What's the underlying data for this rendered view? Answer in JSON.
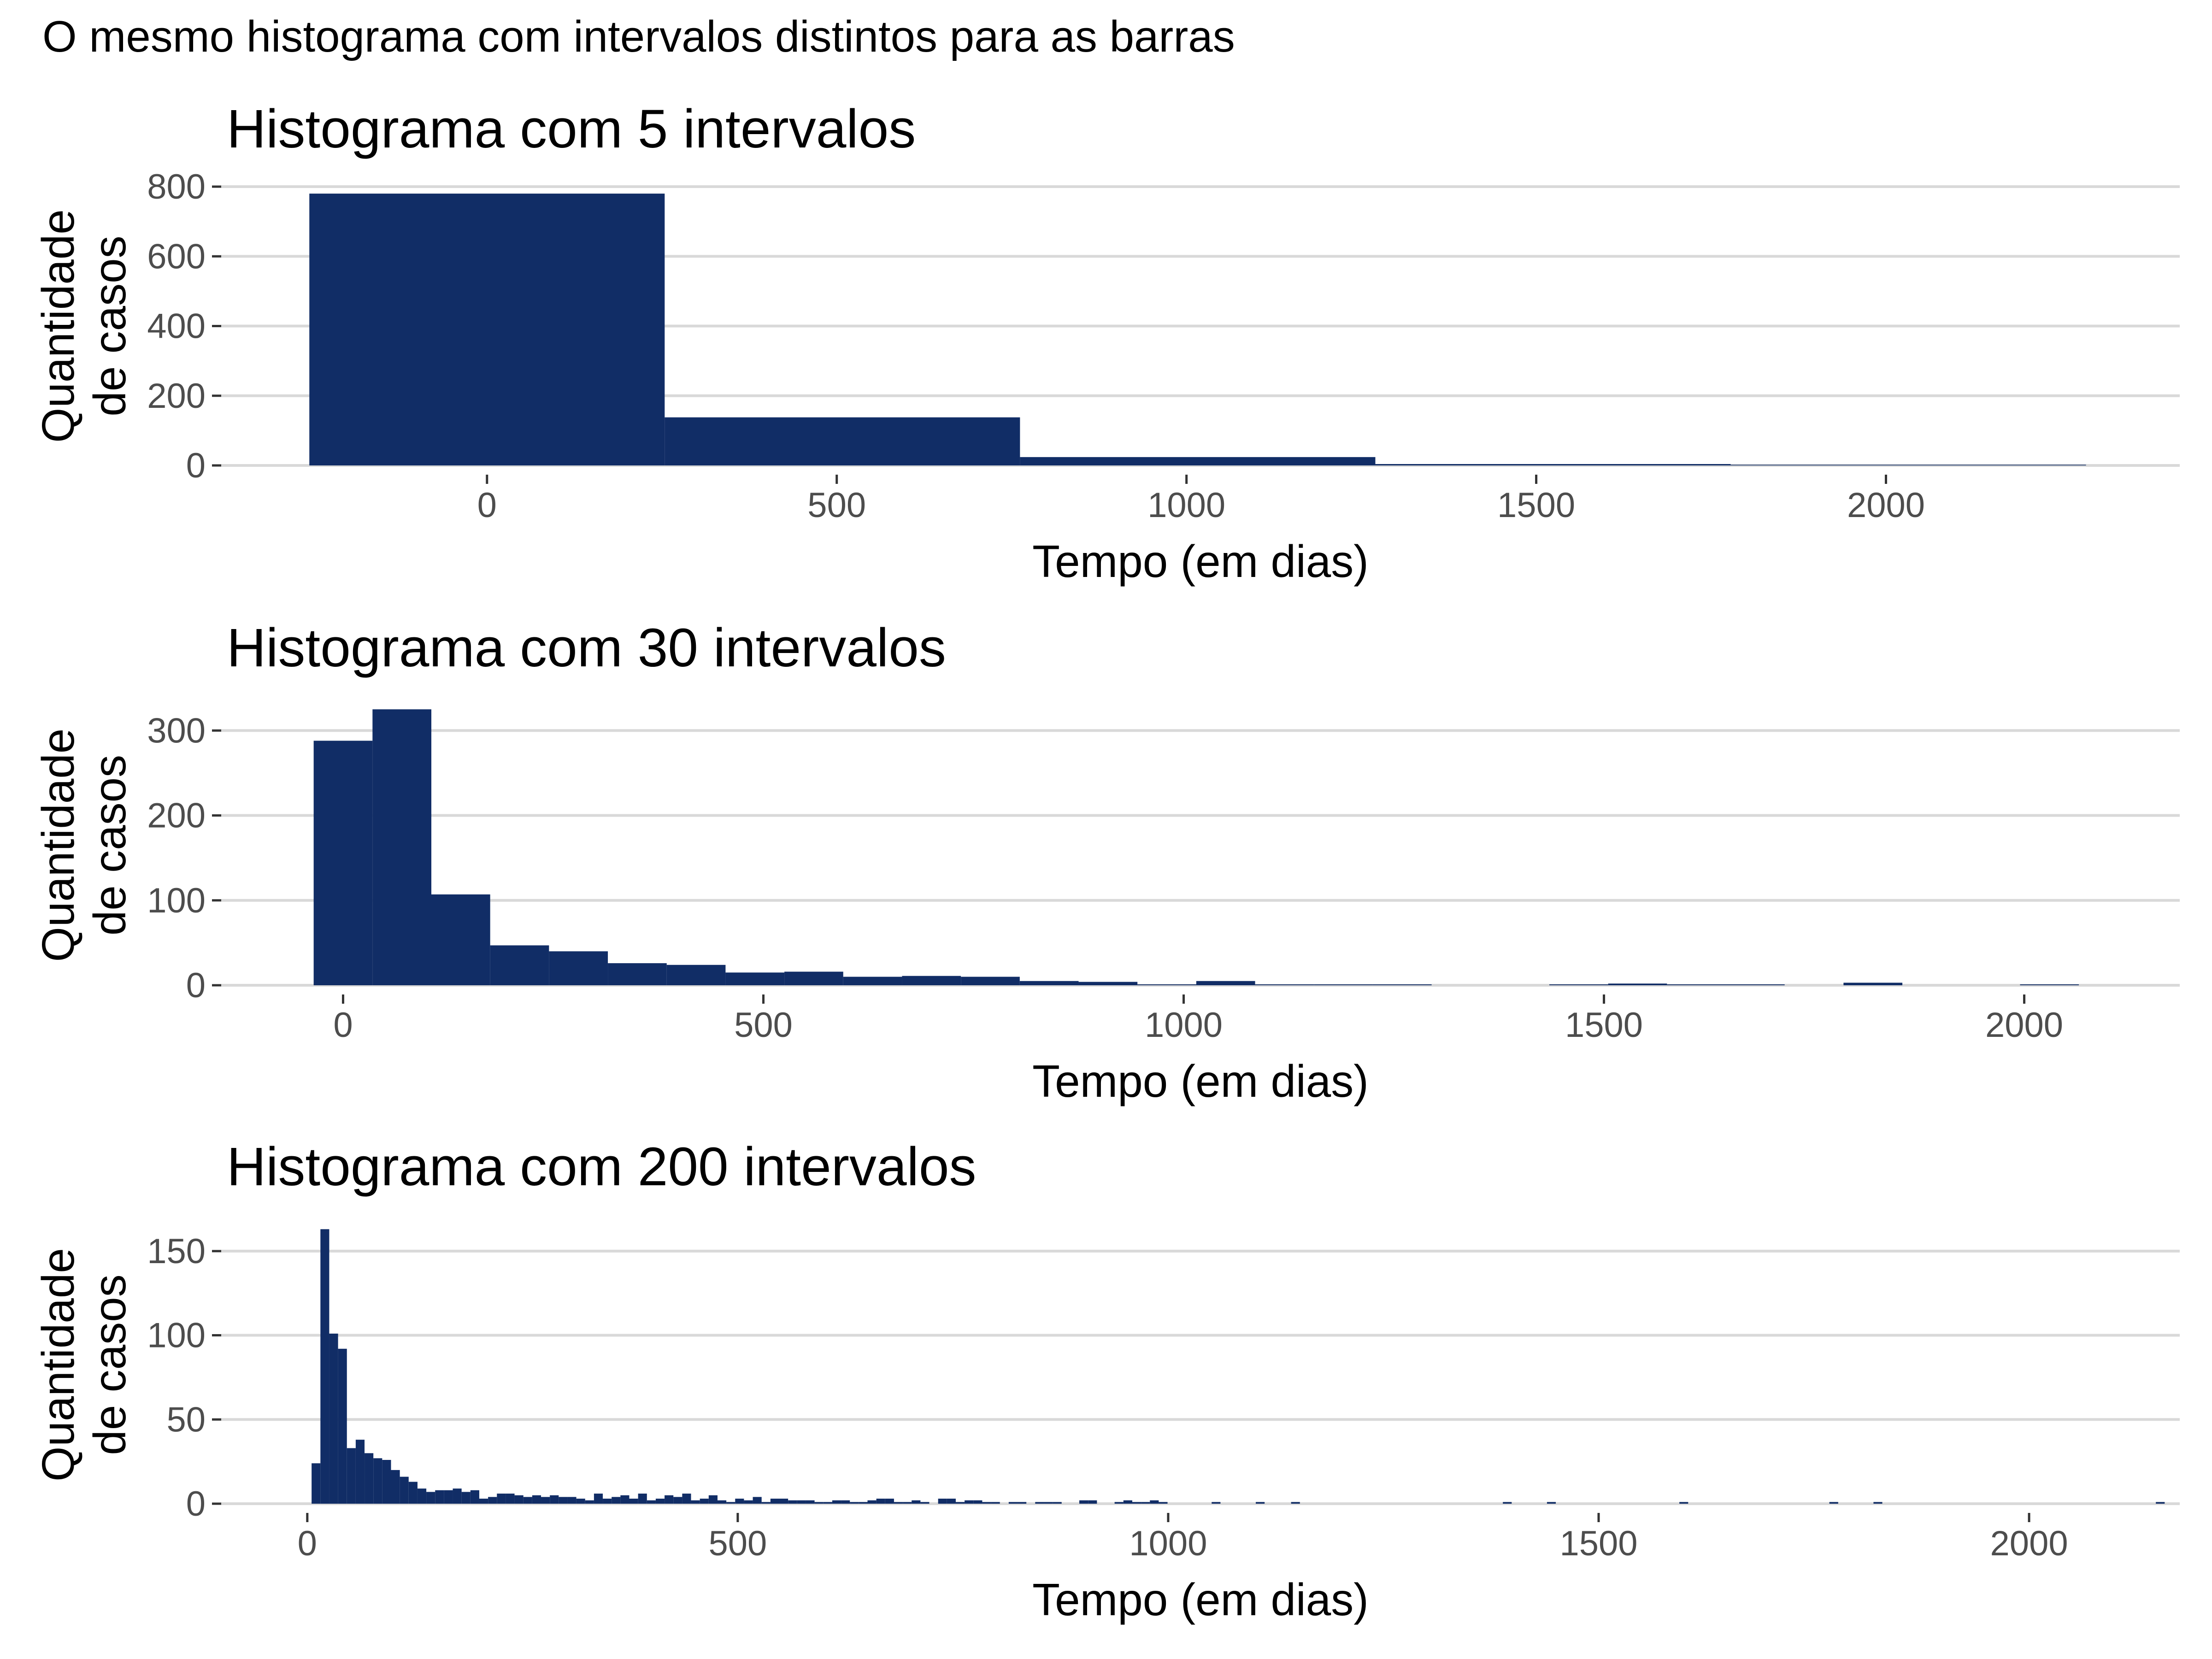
{
  "figure": {
    "title": "O mesmo histograma com intervalos distintos para as barras"
  },
  "style": {
    "bar_color": "#112d66",
    "grid_color": "#d9d9d9",
    "tick_label_color": "#4d4d4d",
    "background": "#ffffff"
  },
  "chart_data": [
    {
      "type": "histogram",
      "title": "Histograma com 5 intervalos",
      "xlabel": "Tempo (em dias)",
      "ylabel_lines": [
        "Quantidade",
        "de casos"
      ],
      "xlim": [
        -380,
        2420
      ],
      "ylim": [
        0,
        800
      ],
      "x_ticks": [
        0,
        500,
        1000,
        1500,
        2000
      ],
      "y_ticks": [
        0,
        200,
        400,
        600,
        800
      ],
      "bin_start": -254,
      "binwidth": 508,
      "counts": [
        780,
        138,
        24,
        4,
        2
      ],
      "grid": "horizontal"
    },
    {
      "type": "histogram",
      "title": "Histograma com 30 intervalos",
      "xlabel": "Tempo (em dias)",
      "ylabel_lines": [
        "Quantidade",
        "de casos"
      ],
      "xlim": [
        -145,
        2185
      ],
      "ylim": [
        0,
        330
      ],
      "x_ticks": [
        0,
        500,
        1000,
        1500,
        2000
      ],
      "y_ticks": [
        0,
        100,
        200,
        300
      ],
      "bin_start": -35,
      "binwidth": 70,
      "counts": [
        288,
        325,
        107,
        47,
        40,
        26,
        24,
        15,
        16,
        10,
        11,
        10,
        5,
        4,
        1,
        5,
        1,
        1,
        1,
        0,
        0,
        1,
        2,
        1,
        1,
        0,
        3,
        0,
        0,
        1
      ],
      "grid": "horizontal"
    },
    {
      "type": "histogram",
      "title": "Histograma com 200 intervalos",
      "xlabel": "Tempo (em dias)",
      "ylabel_lines": [
        "Quantidade",
        "de casos"
      ],
      "xlim": [
        -100,
        2175
      ],
      "ylim": [
        0,
        165
      ],
      "x_ticks": [
        0,
        500,
        1000,
        1500,
        2000
      ],
      "y_ticks": [
        0,
        50,
        100,
        150
      ],
      "bin_start": 5,
      "binwidth": 10.25,
      "counts": [
        24,
        163,
        101,
        92,
        33,
        38,
        30,
        27,
        26,
        20,
        16,
        13,
        9,
        7,
        8,
        8,
        9,
        7,
        8,
        3,
        4,
        6,
        6,
        5,
        4,
        5,
        4,
        5,
        4,
        4,
        3,
        2,
        6,
        3,
        4,
        5,
        3,
        6,
        2,
        3,
        5,
        4,
        6,
        2,
        3,
        5,
        2,
        1,
        3,
        2,
        4,
        1,
        3,
        3,
        2,
        2,
        2,
        1,
        1,
        2,
        2,
        1,
        1,
        2,
        3,
        3,
        1,
        1,
        2,
        1,
        0,
        3,
        3,
        1,
        2,
        2,
        1,
        1,
        0,
        1,
        1,
        0,
        1,
        1,
        1,
        0,
        0,
        2,
        2,
        0,
        0,
        1,
        2,
        1,
        1,
        2,
        1,
        0,
        0,
        0,
        0,
        0,
        1,
        0,
        0,
        0,
        0,
        1,
        0,
        0,
        0,
        1,
        0,
        0,
        0,
        0,
        0,
        0,
        0,
        0,
        0,
        0,
        0,
        0,
        0,
        0,
        0,
        0,
        0,
        0,
        0,
        0,
        0,
        0,
        0,
        1,
        0,
        0,
        0,
        0,
        1,
        0,
        0,
        0,
        0,
        0,
        0,
        0,
        0,
        0,
        0,
        0,
        0,
        0,
        0,
        1,
        0,
        0,
        0,
        0,
        0,
        0,
        0,
        0,
        0,
        0,
        0,
        0,
        0,
        0,
        0,
        0,
        1,
        0,
        0,
        0,
        0,
        1,
        0,
        0,
        0,
        0,
        0,
        0,
        0,
        0,
        0,
        0,
        0,
        0,
        0,
        0,
        0,
        0,
        0,
        0,
        0,
        0,
        0,
        0,
        0,
        0,
        0,
        0,
        0,
        0,
        0,
        0,
        0,
        1,
        0,
        0,
        0,
        0,
        0,
        0,
        0,
        0,
        0,
        0,
        0,
        0,
        0,
        0,
        0,
        0,
        0,
        0,
        0,
        0,
        0,
        0,
        0,
        0,
        0,
        0,
        0,
        0,
        0,
        0,
        0,
        0,
        0,
        0,
        0,
        0,
        0,
        0,
        0,
        0,
        0,
        0,
        0,
        0,
        0,
        0,
        0,
        0,
        0,
        0,
        0,
        0,
        0,
        0,
        0,
        0,
        0,
        0,
        0,
        0,
        0
      ],
      "grid": "horizontal"
    }
  ]
}
